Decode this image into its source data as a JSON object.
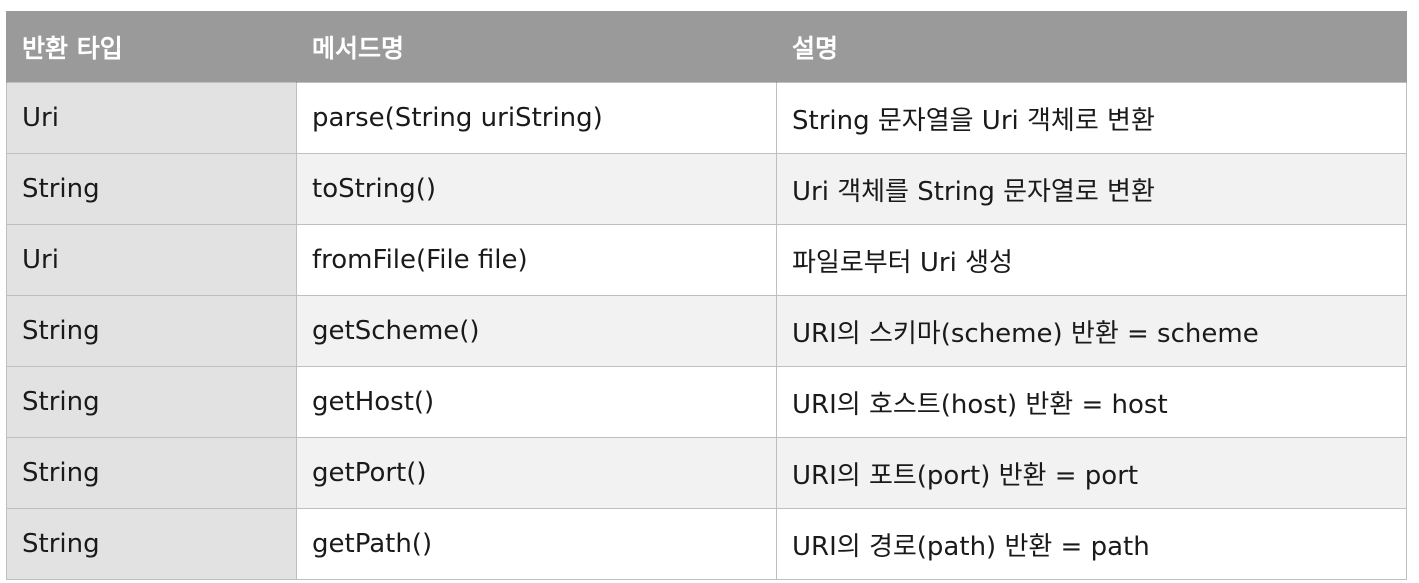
{
  "table": {
    "headers": [
      "반환 타입",
      "메서드명",
      "설명"
    ],
    "rows": [
      [
        "Uri",
        "parse(String uriString)",
        "String 문자열을 Uri 객체로 변환"
      ],
      [
        "String",
        "toString()",
        "Uri 객체를 String 문자열로 변환"
      ],
      [
        "Uri",
        "fromFile(File file)",
        "파일로부터 Uri 생성"
      ],
      [
        "String",
        "getScheme()",
        "URI의 스키마(scheme) 반환 = scheme"
      ],
      [
        "String",
        "getHost()",
        "URI의 호스트(host) 반환 = host"
      ],
      [
        "String",
        "getPort()",
        "URI의 포트(port) 반환 = port"
      ],
      [
        "String",
        "getPath()",
        "URI의 경로(path) 반환 = path"
      ]
    ]
  },
  "colors": {
    "header_bg": "#9a9a9a",
    "header_text": "#ffffff",
    "type_col_bg": "#e2e2e2",
    "stripe_bg": "#f2f2f2",
    "border": "#bfbfbf"
  }
}
